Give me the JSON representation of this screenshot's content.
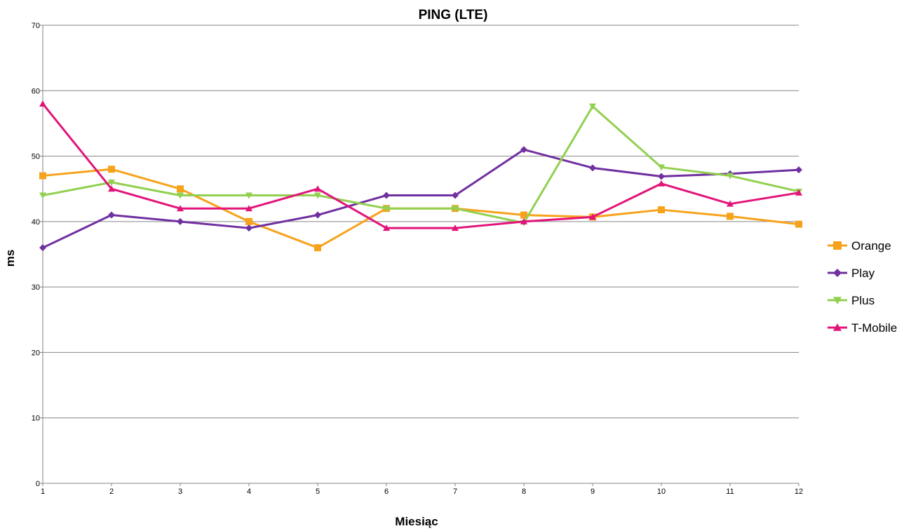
{
  "chart_data": {
    "type": "line",
    "title": "PING (LTE)",
    "xlabel": "Miesiąc",
    "ylabel": "ms",
    "x": [
      1,
      2,
      3,
      4,
      5,
      6,
      7,
      8,
      9,
      10,
      11,
      12
    ],
    "ylim": [
      0,
      70
    ],
    "yticks": [
      0,
      10,
      20,
      30,
      40,
      50,
      60,
      70
    ],
    "grid": true,
    "legend_position": "right",
    "series": [
      {
        "name": "Orange",
        "color": "#F7A21B",
        "marker": "square",
        "values": [
          47,
          48,
          45,
          40,
          36,
          42,
          42,
          41,
          40.7,
          41.8,
          40.8,
          39.6
        ]
      },
      {
        "name": "Play",
        "color": "#7030A0",
        "marker": "diamond",
        "values": [
          36,
          41,
          40,
          39,
          41,
          44,
          44,
          51,
          48.2,
          46.9,
          47.3,
          47.9
        ]
      },
      {
        "name": "Plus",
        "color": "#92D050",
        "marker": "triangle-down",
        "values": [
          44,
          46,
          44,
          44,
          44,
          42,
          42,
          39.8,
          57.6,
          48.3,
          47,
          44.6
        ]
      },
      {
        "name": "T-Mobile",
        "color": "#E2147A",
        "marker": "triangle-up",
        "values": [
          58,
          45,
          42,
          42,
          45,
          39,
          39,
          40,
          40.7,
          45.8,
          42.7,
          44.4
        ]
      }
    ]
  }
}
